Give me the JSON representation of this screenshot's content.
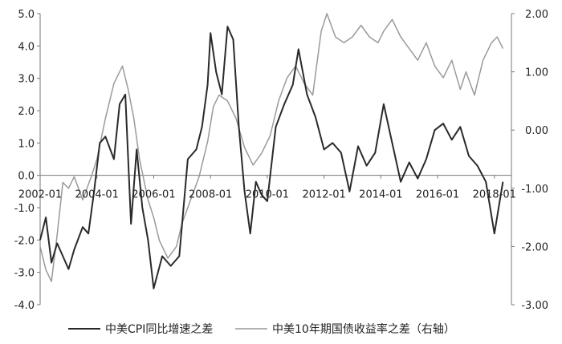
{
  "chart_data": {
    "type": "line",
    "title": "",
    "xlabel": "",
    "x_tick_labels": [
      "2002-01",
      "2004-01",
      "2006-01",
      "2008-01",
      "2010-01",
      "2012-01",
      "2014-01",
      "2016-01",
      "2018-01"
    ],
    "y_left": {
      "ylim": [
        -4.0,
        5.0
      ],
      "ticks": [
        5.0,
        4.0,
        3.0,
        2.0,
        1.0,
        0.0,
        -1.0,
        -2.0,
        -3.0,
        -4.0
      ],
      "tick_labels": [
        "5.0",
        "4.0",
        "3.0",
        "2.0",
        "1.0",
        "0.0",
        "-1.0",
        "-2.0",
        "-3.0",
        "-4.0"
      ]
    },
    "y_right": {
      "ylim": [
        -3.0,
        2.0
      ],
      "ticks": [
        2.0,
        1.0,
        0.0,
        -1.0,
        -2.0,
        -3.0
      ],
      "tick_labels": [
        "2.00",
        "1.00",
        "0.00",
        "-1.00",
        "-2.00",
        "-3.00"
      ]
    },
    "legend_position": "bottom",
    "grid": false,
    "colors": {
      "cpi": "#2a2a2a",
      "yield": "#9a9a9a",
      "axis": "#777777"
    },
    "series": [
      {
        "name": "中美CPI同比增速之差",
        "axis": "left",
        "x": [
          2002.0,
          2002.2,
          2002.4,
          2002.6,
          2002.8,
          2003.0,
          2003.2,
          2003.5,
          2003.7,
          2003.9,
          2004.1,
          2004.3,
          2004.6,
          2004.8,
          2005.0,
          2005.2,
          2005.4,
          2005.6,
          2005.8,
          2006.0,
          2006.3,
          2006.6,
          2006.9,
          2007.2,
          2007.5,
          2007.7,
          2007.9,
          2008.0,
          2008.2,
          2008.4,
          2008.6,
          2008.8,
          2009.0,
          2009.2,
          2009.4,
          2009.6,
          2009.8,
          2010.0,
          2010.3,
          2010.6,
          2010.9,
          2011.1,
          2011.4,
          2011.7,
          2012.0,
          2012.3,
          2012.6,
          2012.9,
          2013.2,
          2013.5,
          2013.8,
          2014.1,
          2014.4,
          2014.7,
          2015.0,
          2015.3,
          2015.6,
          2015.9,
          2016.2,
          2016.5,
          2016.8,
          2017.1,
          2017.4,
          2017.7,
          2018.0,
          2018.3
        ],
        "y": [
          -2.0,
          -1.3,
          -2.7,
          -2.1,
          -2.5,
          -2.9,
          -2.3,
          -1.6,
          -1.8,
          -0.5,
          1.0,
          1.2,
          0.5,
          2.2,
          2.5,
          -1.5,
          0.8,
          -1.0,
          -2.0,
          -3.5,
          -2.5,
          -2.8,
          -2.5,
          0.5,
          0.8,
          1.5,
          2.8,
          4.4,
          3.2,
          2.5,
          4.6,
          4.2,
          1.5,
          -0.5,
          -1.8,
          -0.2,
          -0.6,
          -0.8,
          1.5,
          2.2,
          2.8,
          3.9,
          2.5,
          1.8,
          0.8,
          1.0,
          0.7,
          -0.5,
          0.9,
          0.3,
          0.7,
          2.2,
          1.0,
          -0.2,
          0.4,
          -0.1,
          0.5,
          1.4,
          1.6,
          1.1,
          1.5,
          0.6,
          0.3,
          -0.2,
          -1.8,
          -0.2
        ]
      },
      {
        "name": "中美10年期国债收益率之差（右轴）",
        "axis": "right",
        "x": [
          2002.0,
          2002.2,
          2002.4,
          2002.6,
          2002.8,
          2003.0,
          2003.2,
          2003.5,
          2003.8,
          2004.0,
          2004.3,
          2004.6,
          2004.9,
          2005.1,
          2005.3,
          2005.5,
          2005.8,
          2006.0,
          2006.2,
          2006.5,
          2006.8,
          2007.0,
          2007.3,
          2007.6,
          2007.9,
          2008.1,
          2008.3,
          2008.6,
          2008.9,
          2009.2,
          2009.5,
          2009.8,
          2010.1,
          2010.4,
          2010.7,
          2011.0,
          2011.3,
          2011.6,
          2011.9,
          2012.1,
          2012.4,
          2012.7,
          2013.0,
          2013.3,
          2013.6,
          2013.9,
          2014.1,
          2014.4,
          2014.7,
          2015.0,
          2015.3,
          2015.6,
          2015.9,
          2016.2,
          2016.5,
          2016.8,
          2017.0,
          2017.3,
          2017.6,
          2017.9,
          2018.1,
          2018.3
        ],
        "y": [
          -2.0,
          -2.4,
          -2.6,
          -1.8,
          -0.9,
          -1.0,
          -0.8,
          -1.2,
          -0.8,
          -0.5,
          0.2,
          0.8,
          1.1,
          0.7,
          0.2,
          -0.5,
          -1.2,
          -1.5,
          -1.9,
          -2.2,
          -2.0,
          -1.6,
          -1.2,
          -0.8,
          -0.2,
          0.4,
          0.6,
          0.5,
          0.2,
          -0.3,
          -0.6,
          -0.4,
          -0.1,
          0.5,
          0.9,
          1.1,
          0.8,
          0.6,
          1.7,
          2.0,
          1.6,
          1.5,
          1.6,
          1.8,
          1.6,
          1.5,
          1.7,
          1.9,
          1.6,
          1.4,
          1.2,
          1.5,
          1.1,
          0.9,
          1.2,
          0.7,
          1.0,
          0.6,
          1.2,
          1.5,
          1.6,
          1.4
        ]
      }
    ]
  }
}
